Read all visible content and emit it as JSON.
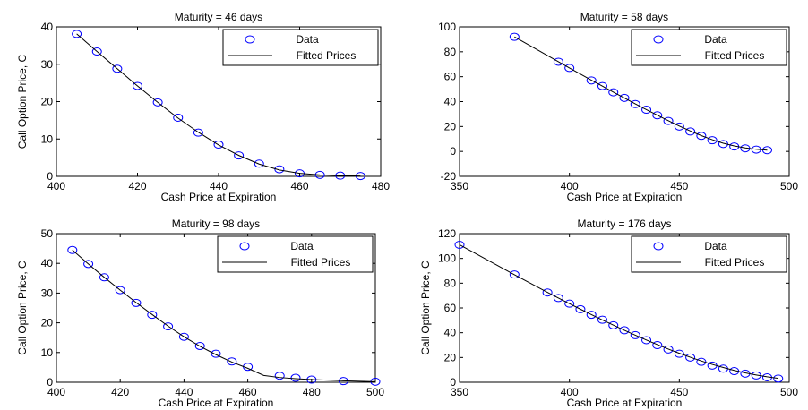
{
  "chart_data": [
    {
      "type": "scatter",
      "title": "Maturity = 46 days",
      "xlabel": "Cash Price at Expiration",
      "ylabel": "Call Option Price, C",
      "xlim": [
        400,
        480
      ],
      "ylim": [
        0,
        40
      ],
      "xticks": [
        400,
        420,
        440,
        460,
        480
      ],
      "yticks": [
        0,
        10,
        20,
        30,
        40
      ],
      "legend": {
        "position": "top-right",
        "entries": [
          "Data",
          "Fitted Prices"
        ]
      },
      "series": [
        {
          "name": "Data",
          "kind": "markers",
          "color": "#0000ff",
          "x": [
            405,
            410,
            415,
            420,
            425,
            430,
            435,
            440,
            445,
            450,
            455,
            460,
            465,
            470,
            475
          ],
          "y": [
            38.1,
            33.4,
            28.8,
            24.2,
            19.8,
            15.7,
            11.7,
            8.5,
            5.6,
            3.4,
            1.9,
            0.8,
            0.4,
            0.2,
            0.1
          ]
        },
        {
          "name": "Fitted Prices",
          "kind": "line",
          "color": "#000000",
          "x": [
            405,
            410,
            415,
            420,
            425,
            430,
            435,
            440,
            445,
            450,
            455,
            460,
            465,
            470,
            475
          ],
          "y": [
            38.1,
            33.4,
            28.8,
            24.2,
            19.8,
            15.6,
            11.8,
            8.4,
            5.6,
            3.3,
            1.7,
            0.8,
            0.4,
            0.2,
            0.1
          ]
        }
      ]
    },
    {
      "type": "scatter",
      "title": "Maturity = 58 days",
      "xlabel": "Cash Price at Expiration",
      "ylabel": "",
      "xlim": [
        350,
        500
      ],
      "ylim": [
        -20,
        100
      ],
      "xticks": [
        350,
        400,
        450,
        500
      ],
      "yticks": [
        -20,
        0,
        20,
        40,
        60,
        80,
        100
      ],
      "legend": {
        "position": "top-right",
        "entries": [
          "Data",
          "Fitted Prices"
        ]
      },
      "series": [
        {
          "name": "Data",
          "kind": "markers",
          "color": "#0000ff",
          "x": [
            375,
            395,
            400,
            410,
            415,
            420,
            425,
            430,
            435,
            440,
            445,
            450,
            455,
            460,
            465,
            470,
            475,
            480,
            485,
            490
          ],
          "y": [
            92,
            72,
            67,
            57,
            52.5,
            47.5,
            43,
            38,
            33.5,
            29,
            24.5,
            20,
            16,
            12.5,
            9,
            6,
            4,
            2.5,
            1.5,
            1
          ]
        },
        {
          "name": "Fitted Prices",
          "kind": "line",
          "color": "#000000",
          "x": [
            375,
            395,
            400,
            410,
            415,
            420,
            425,
            430,
            435,
            440,
            445,
            450,
            455,
            460,
            465,
            470,
            475,
            480,
            485,
            490
          ],
          "y": [
            92,
            72,
            67,
            57.2,
            52.4,
            47.6,
            42.9,
            38.2,
            33.6,
            29.1,
            24.7,
            20.4,
            16.4,
            12.7,
            9.4,
            6.6,
            4.4,
            2.8,
            1.7,
            1
          ]
        }
      ]
    },
    {
      "type": "scatter",
      "title": "Maturity = 98 days",
      "xlabel": "Cash Price at Expiration",
      "ylabel": "Call Option Price, C",
      "xlim": [
        400,
        500
      ],
      "ylim": [
        0,
        50
      ],
      "xticks": [
        400,
        420,
        440,
        460,
        480,
        500
      ],
      "yticks": [
        0,
        10,
        20,
        30,
        40,
        50
      ],
      "legend": {
        "position": "top-right",
        "entries": [
          "Data",
          "Fitted Prices"
        ]
      },
      "series": [
        {
          "name": "Data",
          "kind": "markers",
          "color": "#0000ff",
          "x": [
            405,
            410,
            415,
            420,
            425,
            430,
            435,
            440,
            445,
            450,
            455,
            460,
            470,
            475,
            480,
            490,
            500
          ],
          "y": [
            44.5,
            39.8,
            35.3,
            31,
            26.7,
            22.7,
            18.8,
            15.3,
            12.2,
            9.6,
            7,
            5.2,
            2.2,
            1.5,
            0.9,
            0.4,
            0.2
          ]
        },
        {
          "name": "Fitted Prices",
          "kind": "line",
          "color": "#000000",
          "x": [
            405,
            410,
            415,
            420,
            425,
            430,
            435,
            440,
            445,
            450,
            455,
            460,
            465,
            470,
            475,
            480,
            490,
            500
          ],
          "y": [
            44.5,
            39.8,
            35.3,
            31,
            26.8,
            22.8,
            18.9,
            15.3,
            12.1,
            9.3,
            6.8,
            4.7,
            2.3,
            1.6,
            1.2,
            0.9,
            0.5,
            0.2
          ]
        }
      ]
    },
    {
      "type": "scatter",
      "title": "Maturity = 176 days",
      "xlabel": "Cash Price at Expiration",
      "ylabel": "Call Option Price, C",
      "xlim": [
        350,
        500
      ],
      "ylim": [
        0,
        120
      ],
      "xticks": [
        350,
        400,
        450,
        500
      ],
      "yticks": [
        0,
        20,
        40,
        60,
        80,
        100,
        120
      ],
      "legend": {
        "position": "top-right",
        "entries": [
          "Data",
          "Fitted Prices"
        ]
      },
      "series": [
        {
          "name": "Data",
          "kind": "markers",
          "color": "#0000ff",
          "x": [
            350,
            375,
            390,
            395,
            400,
            405,
            410,
            415,
            420,
            425,
            430,
            435,
            440,
            445,
            450,
            455,
            460,
            465,
            470,
            475,
            480,
            485,
            490,
            495
          ],
          "y": [
            111,
            87,
            72.5,
            68,
            63.5,
            59,
            54.5,
            50.5,
            46,
            42,
            38,
            34,
            30,
            26.5,
            23,
            20,
            16.5,
            13.5,
            11,
            9,
            7,
            5.5,
            4,
            3
          ]
        },
        {
          "name": "Fitted Prices",
          "kind": "line",
          "color": "#000000",
          "x": [
            350,
            375,
            390,
            395,
            400,
            405,
            410,
            415,
            420,
            425,
            430,
            435,
            440,
            445,
            450,
            455,
            460,
            465,
            470,
            475,
            480,
            485,
            490,
            495
          ],
          "y": [
            111,
            86.8,
            72.6,
            68,
            63.5,
            59,
            54.6,
            50.3,
            46.1,
            42,
            38,
            34.1,
            30.4,
            26.8,
            23.4,
            20.2,
            17.2,
            14.4,
            11.9,
            9.6,
            7.6,
            5.9,
            4.4,
            3.2
          ]
        }
      ]
    }
  ]
}
